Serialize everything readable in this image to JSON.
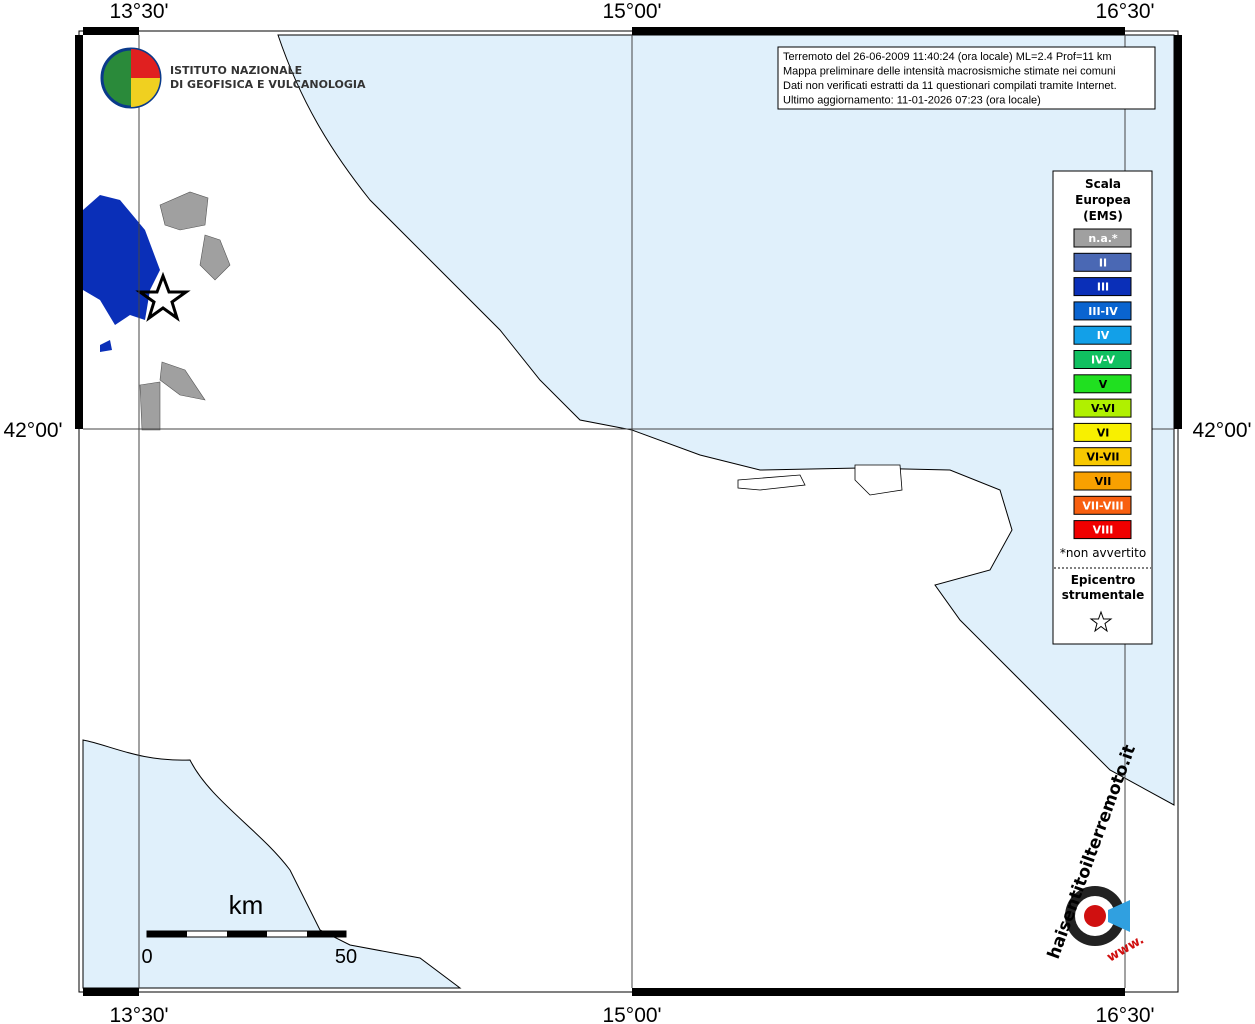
{
  "lon_labels": [
    "13°30'",
    "15°00'",
    "16°30'"
  ],
  "lat_labels": [
    "42°00'"
  ],
  "logo": [
    "ISTITUTO NAZIONALE",
    "DI GEOFISICA E VULCANOLOGIA"
  ],
  "info": [
    "Terremoto del 26-06-2009 11:40:24 (ora locale) ML=2.4 Prof=11 km",
    "Mappa preliminare delle intensità macrosismiche stimate nei comuni",
    "Dati non verificati estratti da 11 questionari compilati tramite Internet.",
    "Ultimo aggiornamento: 11-01-2026 07:23 (ora locale)"
  ],
  "legend": {
    "title": [
      "Scala",
      "Europea",
      "(EMS)"
    ],
    "items": [
      {
        "label": "n.a.*",
        "color": "#a0a0a0"
      },
      {
        "label": "II",
        "color": "#4a68b4"
      },
      {
        "label": "III",
        "color": "#0a2fb8"
      },
      {
        "label": "III-IV",
        "color": "#0a64d0"
      },
      {
        "label": "IV",
        "color": "#12a0e8"
      },
      {
        "label": "IV-V",
        "color": "#10c060"
      },
      {
        "label": "V",
        "color": "#20e020"
      },
      {
        "label": "V-VI",
        "color": "#b0f000"
      },
      {
        "label": "VI",
        "color": "#f8f000"
      },
      {
        "label": "VI-VII",
        "color": "#f8c800"
      },
      {
        "label": "VII",
        "color": "#f8a000"
      },
      {
        "label": "VII-VIII",
        "color": "#f86010"
      },
      {
        "label": "VIII",
        "color": "#f00000"
      }
    ],
    "note": "*non avvertito",
    "epicenter": [
      "Epicentro",
      "strumentale"
    ]
  },
  "scale_bar": {
    "unit": "km",
    "labels": [
      "0",
      "50"
    ]
  },
  "watermark": [
    "haisentitoilterremoto.it",
    "www."
  ]
}
